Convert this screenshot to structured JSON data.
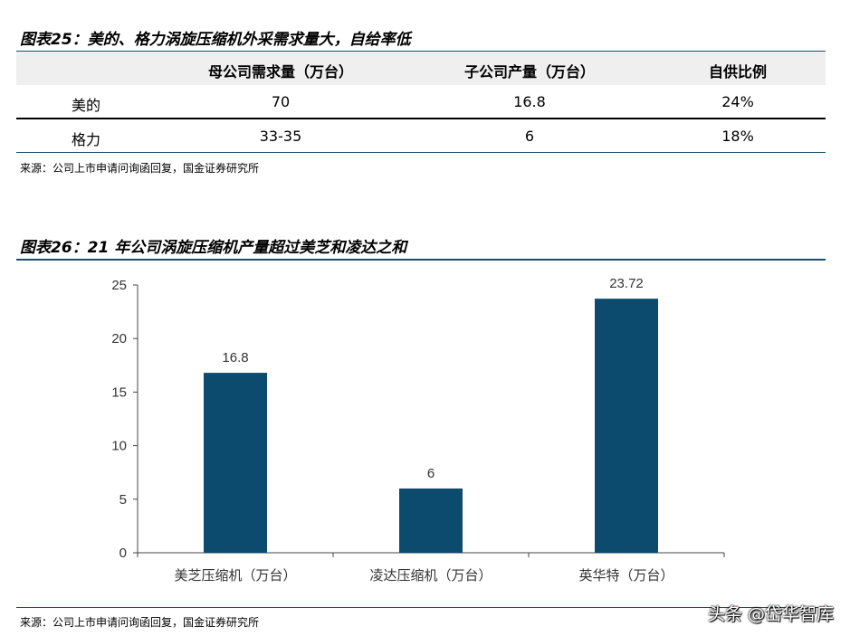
{
  "table_title": "图表25：美的、格力涡旋压缩机外采需求量大，自给率低",
  "table": {
    "headers": [
      "",
      "母公司需求量（万台）",
      "子公司产量（万台）",
      "自供比例"
    ],
    "rows": [
      [
        "美的",
        "70",
        "16.8",
        "24%"
      ],
      [
        "格力",
        "33-35",
        "6",
        "18%"
      ]
    ]
  },
  "table_source": "来源：公司上市申请问询函回复，国金证券研究所",
  "chart_title": "图表26：21 年公司涡旋压缩机产量超过美芝和凌达之和",
  "chart_source": "来源：公司上市申请问询函回复，国金证券研究所",
  "watermark": "头条 @岱华智库",
  "colors": {
    "bar": "#0c4a6e",
    "rule": "#1b4f6b",
    "header_band": "#efefef"
  },
  "chart_data": {
    "type": "bar",
    "categories": [
      "美芝压缩机（万台）",
      "凌达压缩机（万台）",
      "英华特（万台）"
    ],
    "values": [
      16.8,
      6,
      23.72
    ],
    "value_labels": [
      "16.8",
      "6",
      "23.72"
    ],
    "yticks": [
      "0",
      "5",
      "10",
      "15",
      "20",
      "25"
    ],
    "ylim": [
      0,
      25
    ],
    "grid": false,
    "legend": "none"
  }
}
